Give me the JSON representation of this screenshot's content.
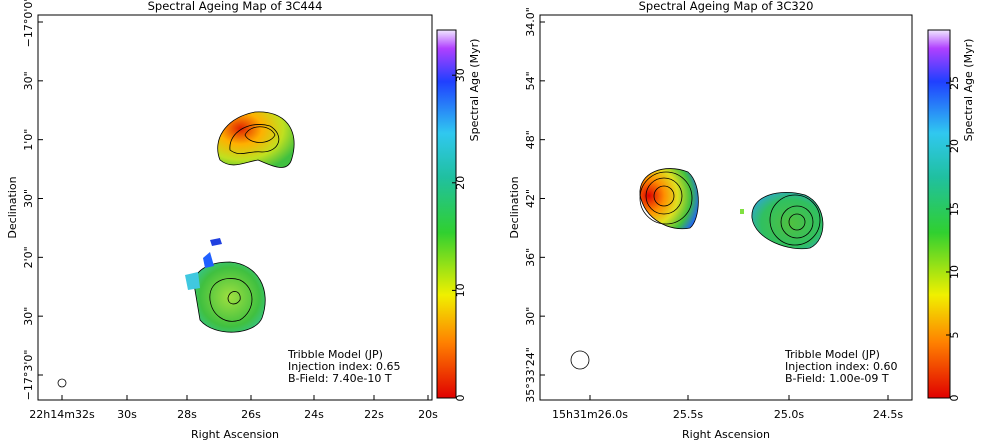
{
  "figure": {
    "panels": [
      {
        "title": "Spectral Ageing Map of 3C444",
        "xlabel": "Right Ascension",
        "ylabel": "Declination",
        "xticks": [
          "22h14m32s",
          "30s",
          "28s",
          "26s",
          "24s",
          "22s",
          "20s"
        ],
        "yticks": [
          "−17°0'0\"",
          "30\"",
          "1'0\"",
          "30\"",
          "2'0\"",
          "30\"",
          "−17°3'0\""
        ],
        "colorbar": {
          "label": "Spectral Age (Myr)",
          "range": [
            0,
            34.2
          ],
          "ticks": [
            0,
            10,
            20,
            30
          ]
        },
        "annotation": [
          "Tribble Model (JP)",
          "Injection index: 0.65",
          "B-Field: 7.40e-10 T"
        ]
      },
      {
        "title": "Spectral Ageing Map of 3C320",
        "xlabel": "Right Ascension",
        "ylabel": "Declination",
        "xticks": [
          "15h31m26.0s",
          "25.5s",
          "25.0s",
          "24.5s"
        ],
        "yticks": [
          "34.0\"",
          "54\"",
          "48\"",
          "42\"",
          "36\"",
          "30\"",
          "35°33'24\""
        ],
        "colorbar": {
          "label": "Spectral Age (Myr)",
          "range": [
            0,
            29.2
          ],
          "ticks": [
            0,
            5,
            10,
            15,
            20,
            25
          ]
        },
        "annotation": [
          "Tribble Model (JP)",
          "Injection index: 0.60",
          "B-Field: 1.00e-09 T"
        ]
      }
    ]
  }
}
